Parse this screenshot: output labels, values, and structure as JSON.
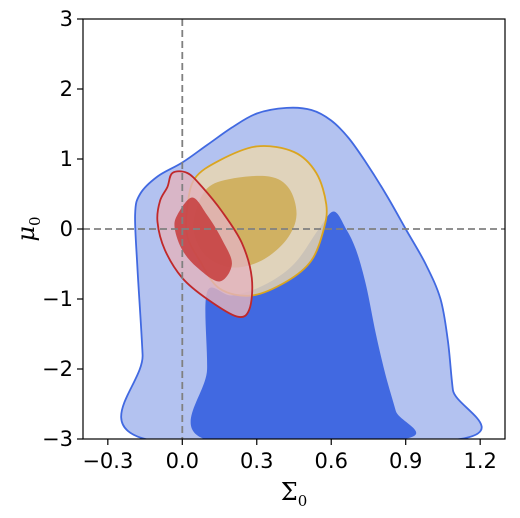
{
  "chart_data": {
    "type": "contour",
    "xlabel": "Σ",
    "xlabel_sub": "0",
    "ylabel": "μ",
    "ylabel_sub": "0",
    "xlim": [
      -0.4,
      1.3
    ],
    "ylim": [
      -3,
      3
    ],
    "xticks": [
      -0.3,
      0.0,
      0.3,
      0.6,
      0.9,
      1.2
    ],
    "xtick_labels": [
      "−0.3",
      "0.0",
      "0.3",
      "0.6",
      "0.9",
      "1.2"
    ],
    "yticks": [
      -3,
      -2,
      -1,
      0,
      1,
      2,
      3
    ],
    "ytick_labels": [
      "−3",
      "−2",
      "−1",
      "0",
      "1",
      "2",
      "3"
    ],
    "reference_lines": {
      "x": 0,
      "y": 0,
      "color": "#808080",
      "style": "dashed"
    },
    "grid": false,
    "series": [
      {
        "color": "#4169e1",
        "fill_outer": "#b3c2f0",
        "fill_inner": "#4169e1",
        "edge": "#4169e1",
        "outer": [
          [
            -0.15,
            -3
          ],
          [
            -0.16,
            -1.8
          ],
          [
            -0.18,
            -0.6
          ],
          [
            -0.19,
            0.2
          ],
          [
            -0.17,
            0.5
          ],
          [
            -0.1,
            0.75
          ],
          [
            0.0,
            0.95
          ],
          [
            0.1,
            1.2
          ],
          [
            0.2,
            1.45
          ],
          [
            0.3,
            1.65
          ],
          [
            0.42,
            1.73
          ],
          [
            0.52,
            1.7
          ],
          [
            0.6,
            1.55
          ],
          [
            0.67,
            1.3
          ],
          [
            0.74,
            0.95
          ],
          [
            0.82,
            0.5
          ],
          [
            0.9,
            0.0
          ],
          [
            0.98,
            -0.5
          ],
          [
            1.04,
            -1.0
          ],
          [
            1.07,
            -1.6
          ],
          [
            1.09,
            -2.3
          ],
          [
            1.12,
            -3
          ]
        ],
        "inner": [
          [
            0.09,
            -3
          ],
          [
            0.1,
            -2.0
          ],
          [
            0.1,
            -0.9
          ],
          [
            0.2,
            -0.95
          ],
          [
            0.33,
            -0.8
          ],
          [
            0.45,
            -0.5
          ],
          [
            0.55,
            0.0
          ],
          [
            0.61,
            0.25
          ],
          [
            0.66,
            0.0
          ],
          [
            0.7,
            -0.3
          ],
          [
            0.74,
            -0.8
          ],
          [
            0.78,
            -1.5
          ],
          [
            0.82,
            -2.1
          ],
          [
            0.86,
            -2.6
          ],
          [
            0.89,
            -3
          ]
        ]
      },
      {
        "color": "#daa520",
        "fill_outer": "#ead7ae",
        "fill_inner": "#ccaa52",
        "edge": "#daa520",
        "outer": [
          [
            0.02,
            0.3
          ],
          [
            0.05,
            0.72
          ],
          [
            0.15,
            0.98
          ],
          [
            0.3,
            1.18
          ],
          [
            0.45,
            1.1
          ],
          [
            0.54,
            0.8
          ],
          [
            0.58,
            0.35
          ],
          [
            0.57,
            0.0
          ],
          [
            0.52,
            -0.45
          ],
          [
            0.42,
            -0.75
          ],
          [
            0.28,
            -0.95
          ],
          [
            0.15,
            -0.85
          ],
          [
            0.07,
            -0.45
          ],
          [
            0.02,
            -0.1
          ]
        ],
        "inner": [
          [
            0.05,
            0.2
          ],
          [
            0.1,
            0.58
          ],
          [
            0.2,
            0.72
          ],
          [
            0.35,
            0.75
          ],
          [
            0.43,
            0.58
          ],
          [
            0.46,
            0.2
          ],
          [
            0.42,
            -0.15
          ],
          [
            0.32,
            -0.45
          ],
          [
            0.2,
            -0.55
          ],
          [
            0.1,
            -0.4
          ],
          [
            0.05,
            -0.1
          ]
        ]
      },
      {
        "color": "#c0282a",
        "fill_outer": "#e2b3bd",
        "fill_inner": "#c63b3b",
        "edge": "#c0282a",
        "outer": [
          [
            -0.06,
            0.6
          ],
          [
            -0.04,
            0.8
          ],
          [
            0.02,
            0.8
          ],
          [
            0.08,
            0.6
          ],
          [
            0.16,
            0.25
          ],
          [
            0.24,
            -0.2
          ],
          [
            0.28,
            -0.7
          ],
          [
            0.27,
            -1.15
          ],
          [
            0.22,
            -1.25
          ],
          [
            0.1,
            -1.0
          ],
          [
            0.0,
            -0.7
          ],
          [
            -0.07,
            -0.3
          ],
          [
            -0.1,
            0.1
          ],
          [
            -0.09,
            0.4
          ]
        ],
        "inner": [
          [
            -0.02,
            0.2
          ],
          [
            0.04,
            0.45
          ],
          [
            0.1,
            0.2
          ],
          [
            0.16,
            -0.15
          ],
          [
            0.2,
            -0.5
          ],
          [
            0.15,
            -0.75
          ],
          [
            0.06,
            -0.55
          ],
          [
            0.0,
            -0.3
          ],
          [
            -0.03,
            0.0
          ]
        ]
      }
    ]
  }
}
